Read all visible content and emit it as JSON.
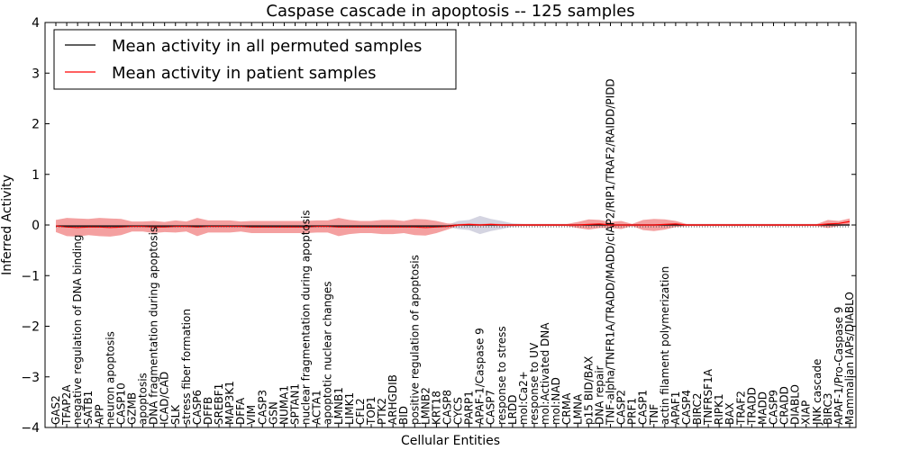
{
  "chart_data": {
    "type": "line",
    "title": "Caspase cascade in apoptosis -- 125 samples",
    "xlabel": "Cellular Entities",
    "ylabel": "Inferred Activity",
    "ylim": [
      -4,
      4
    ],
    "yticks": [
      -4,
      -3,
      -2,
      -1,
      0,
      1,
      2,
      3,
      4
    ],
    "ytick_labels": [
      "−4",
      "−3",
      "−2",
      "−1",
      "0",
      "1",
      "2",
      "3",
      "4"
    ],
    "legend_position": "top-left",
    "colors": {
      "permuted_line": "#000000",
      "patient_line": "#ff0000",
      "patient_band": "#f08080",
      "permuted_band": "#b0b0c8"
    },
    "categories": [
      "GAS2",
      "TFAP2A",
      "negative regulation of DNA binding",
      "SATB1",
      "APP",
      "neuron apoptosis",
      "CASP10",
      "GZMB",
      "apoptosis",
      "DNA fragmentation during apoptosis",
      "ICAD/CAD",
      "SLK",
      "stress fiber formation",
      "CASP6",
      "DFFB",
      "SREBF1",
      "MAP3K1",
      "DFFA",
      "VIM",
      "CASP3",
      "GSN",
      "NUMA1",
      "SPTAN1",
      "nuclear fragmentation during apoptosis",
      "ACTA1",
      "apoptotic nuclear changes",
      "LMNB1",
      "LIMK1",
      "CFL2",
      "TOP1",
      "PTK2",
      "ARHGDIB",
      "BID",
      "positive regulation of apoptosis",
      "LMNB2",
      "KRT18",
      "CASP8",
      "CYCS",
      "PARP1",
      "APAF-1/Caspase 9",
      "CASP7",
      "response to stress",
      "LRDD",
      "mol:Ca2+",
      "response to UV",
      "mol:Activated DNA",
      "mol:NAD",
      "CRMA",
      "LMNA",
      "p15 BID/BAX",
      "DNA repair",
      "TNF-alpha/TNFR1A/TRADD/MADD/cIAP2/RIP1/TRAF2/RAIDD/PIDD",
      "CASP2",
      "PRF1",
      "CASP1",
      "TNF",
      "actin filament polymerization",
      "APAF1",
      "CASP4",
      "BIRC2",
      "TNFRSF1A",
      "RIPK1",
      "BAX",
      "TRAF2",
      "TRADD",
      "MADD",
      "CASP9",
      "CRADD",
      "DIABLO",
      "XIAP",
      "JNK cascade",
      "BIRC3",
      "APAF-1/Pro-Caspase 9",
      "Mammalian IAPs/DIABLO"
    ],
    "series": [
      {
        "name": "Mean activity in all permuted samples",
        "color": "#000000",
        "values": [
          -0.02,
          -0.02,
          -0.02,
          -0.02,
          -0.02,
          -0.02,
          -0.02,
          -0.02,
          -0.02,
          -0.02,
          -0.02,
          -0.02,
          -0.02,
          -0.02,
          -0.02,
          -0.02,
          -0.02,
          -0.02,
          -0.02,
          -0.02,
          -0.02,
          -0.02,
          -0.02,
          -0.02,
          -0.02,
          -0.02,
          -0.02,
          -0.02,
          -0.02,
          -0.02,
          -0.02,
          -0.02,
          -0.02,
          -0.02,
          -0.02,
          -0.02,
          -0.02,
          0.0,
          0.0,
          0.0,
          0.0,
          0.0,
          0.0,
          0.0,
          0.0,
          0.0,
          0.0,
          0.0,
          0.0,
          0.0,
          0.0,
          0.0,
          0.0,
          0.0,
          0.0,
          0.0,
          0.0,
          0.0,
          0.0,
          0.0,
          0.0,
          0.0,
          0.0,
          0.0,
          0.0,
          0.0,
          0.0,
          0.0,
          0.0,
          0.0,
          0.0,
          0.0,
          0.0,
          0.0
        ],
        "band": [
          0.02,
          0.02,
          0.02,
          0.02,
          0.02,
          0.02,
          0.02,
          0.02,
          0.02,
          0.02,
          0.02,
          0.02,
          0.02,
          0.02,
          0.02,
          0.02,
          0.02,
          0.02,
          0.02,
          0.02,
          0.02,
          0.02,
          0.02,
          0.02,
          0.02,
          0.02,
          0.02,
          0.02,
          0.02,
          0.02,
          0.02,
          0.02,
          0.02,
          0.02,
          0.02,
          0.02,
          0.02,
          0.08,
          0.1,
          0.18,
          0.12,
          0.08,
          0.03,
          0.02,
          0.02,
          0.02,
          0.02,
          0.02,
          0.02,
          0.02,
          0.02,
          0.02,
          0.02,
          0.02,
          0.02,
          0.02,
          0.02,
          0.02,
          0.02,
          0.02,
          0.02,
          0.02,
          0.02,
          0.02,
          0.02,
          0.02,
          0.02,
          0.02,
          0.02,
          0.02,
          0.02,
          0.02,
          0.02,
          0.02
        ]
      },
      {
        "name": "Mean activity in patient samples",
        "color": "#ff0000",
        "values": [
          -0.02,
          -0.04,
          -0.05,
          -0.04,
          -0.04,
          -0.05,
          -0.04,
          -0.03,
          -0.03,
          -0.04,
          -0.04,
          -0.03,
          -0.03,
          -0.04,
          -0.03,
          -0.03,
          -0.03,
          -0.03,
          -0.04,
          -0.04,
          -0.04,
          -0.04,
          -0.04,
          -0.04,
          -0.03,
          -0.03,
          -0.04,
          -0.04,
          -0.04,
          -0.04,
          -0.04,
          -0.04,
          -0.04,
          -0.04,
          -0.05,
          -0.04,
          -0.03,
          0.0,
          0.01,
          0.0,
          0.01,
          0.0,
          0.0,
          0.0,
          0.0,
          0.0,
          0.0,
          0.0,
          0.0,
          0.01,
          0.02,
          0.0,
          0.0,
          0.0,
          0.0,
          0.0,
          0.01,
          0.02,
          0.0,
          0.0,
          0.0,
          0.0,
          0.0,
          0.0,
          0.0,
          0.0,
          0.0,
          0.0,
          0.0,
          0.0,
          0.0,
          0.02,
          0.03,
          0.07
        ],
        "band": [
          0.12,
          0.18,
          0.18,
          0.16,
          0.18,
          0.18,
          0.16,
          0.1,
          0.1,
          0.12,
          0.1,
          0.12,
          0.1,
          0.18,
          0.12,
          0.12,
          0.12,
          0.1,
          0.12,
          0.12,
          0.12,
          0.12,
          0.12,
          0.12,
          0.12,
          0.12,
          0.18,
          0.14,
          0.12,
          0.12,
          0.14,
          0.14,
          0.12,
          0.16,
          0.16,
          0.12,
          0.06,
          0.02,
          0.02,
          0.02,
          0.02,
          0.02,
          0.02,
          0.02,
          0.02,
          0.02,
          0.02,
          0.02,
          0.06,
          0.1,
          0.08,
          0.06,
          0.08,
          0.02,
          0.1,
          0.12,
          0.1,
          0.06,
          0.02,
          0.02,
          0.02,
          0.02,
          0.02,
          0.02,
          0.02,
          0.02,
          0.02,
          0.02,
          0.02,
          0.02,
          0.02,
          0.08,
          0.05,
          0.06
        ]
      }
    ]
  }
}
